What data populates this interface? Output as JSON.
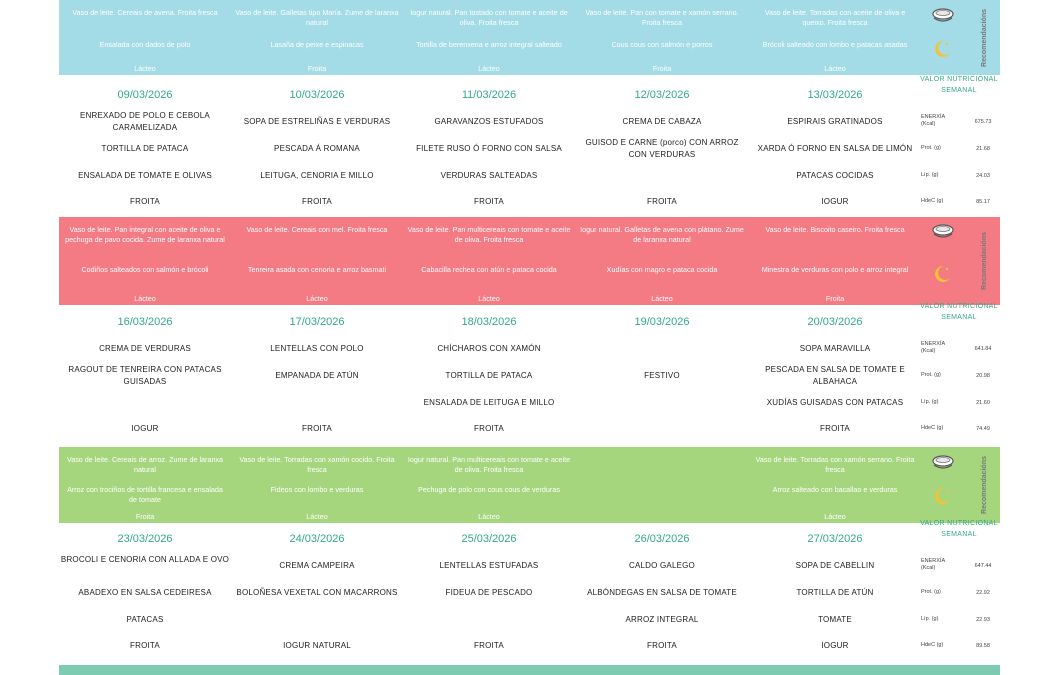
{
  "bands": [
    {
      "color": "#a3dbe6",
      "side_label": "Recomendacións",
      "cells": [
        {
          "breakfast": "Vaso de leite. Cereais de avena. Froita fresca",
          "dinner": "Ensalada con dados de polo",
          "dessert": "Lácteo"
        },
        {
          "breakfast": "Vaso de leite. Galletas tipo María. Zume de laranxa natural",
          "dinner": "Lasaña de peixe e espinacas",
          "dessert": "Froita"
        },
        {
          "breakfast": "Iogur natural. Pan tostado con tomate e aceite de oliva. Froita fresca",
          "dinner": "Tortilla de berenxena e arroz integral salteado",
          "dessert": "Lácteo"
        },
        {
          "breakfast": "Vaso de leite. Pan con tomate e xamón serrano. Froita fresca",
          "dinner": "Cous cous con salmón e porros",
          "dessert": "Froita"
        },
        {
          "breakfast": "Vaso de leite. Torradas con aceite de oliva e queixo. Froita fresca",
          "dinner": "Brócoli salteado con lombo e patacas asadas",
          "dessert": "Lácteo"
        }
      ]
    },
    {
      "color": "#f47a84",
      "side_label": "Recomendacións",
      "cells": [
        {
          "breakfast": "Vaso de leite. Pan integral con aceite de oliva e pechuga de pavo cocida. Zume de laranxa natural",
          "dinner": "Codiños salteados con salmón e brócoli",
          "dessert": "Lácteo"
        },
        {
          "breakfast": "Vaso de leite. Cereais con mel. Froita fresca",
          "dinner": "Tenreira asada con cenoria e arroz basmati",
          "dessert": "Lácteo"
        },
        {
          "breakfast": "Vaso de leite. Pan multicereais con tomate e aceite de oliva. Froita fresca",
          "dinner": "Cabacilla rechea con atún e pataca cocida",
          "dessert": "Lácteo"
        },
        {
          "breakfast": "Iogur natural. Galletas de avena con plátano. Zume de laranxa natural",
          "dinner": "Xudías con magro e pataca cocida",
          "dessert": "Lácteo"
        },
        {
          "breakfast": "Vaso de leite. Biscoito caseiro. Froita fresca",
          "dinner": "Minestra de verduras con polo e arroz integral",
          "dessert": "Froita"
        }
      ]
    },
    {
      "color": "#a5d67e",
      "side_label": "Recomendacións",
      "cells": [
        {
          "breakfast": "Vaso de leite. Cereais de arroz. Zume de laranxa natural",
          "dinner": "Arroz con trociños de tortilla francesa e ensalada de tomate",
          "dessert": "Froita"
        },
        {
          "breakfast": "Vaso de leite. Torradas con xamón cocido. Froita fresca",
          "dinner": "Fideos con lombo e verduras",
          "dessert": "Lácteo"
        },
        {
          "breakfast": "Iogur natural. Pan multicereais con tomate e aceite de oliva. Froita fresca",
          "dinner": "Pechuga de polo con cous cous de verduras",
          "dessert": "Lácteo"
        },
        {
          "breakfast": "",
          "dinner": "",
          "dessert": ""
        },
        {
          "breakfast": "Vaso de leite. Torradas con xamón serrano. Froita fresca",
          "dinner": "Arroz salteado con bacallao e verduras",
          "dessert": "Lácteo"
        }
      ]
    }
  ],
  "weeks": [
    {
      "dates": [
        "09/03/2026",
        "10/03/2026",
        "11/03/2026",
        "12/03/2026",
        "13/03/2026"
      ],
      "rows": [
        [
          "ENREXADO DE POLO E CEBOLA CARAMELIZADA",
          "SOPA DE ESTRELIÑAS E VERDURAS",
          "GARAVANZOS ESTUFADOS",
          "CREMA DE CABAZA",
          "ESPIRAIS GRATINADOS"
        ],
        [
          "TORTILLA DE PATACA",
          "PESCADA Á ROMANA",
          "FILETE RUSO Ó FORNO CON SALSA",
          "GUISOD E CARNE (porco) CON ARROZ CON VERDURAS",
          "XARDA Ó FORNO EN SALSA DE LIMÓN"
        ],
        [
          "ENSALADA DE TOMATE E OLIVAS",
          "LEITUGA, CENORIA E MILLO",
          "VERDURAS SALTEADAS",
          "",
          "PATACAS COCIDAS"
        ],
        [
          "FROITA",
          "FROITA",
          "FROITA",
          "FROITA",
          "IOGUR"
        ]
      ],
      "nutrition_title": "VALOR NUTRICIONAL SEMANAL",
      "nutrition": [
        {
          "label": "ENERXÍA (Kcal)",
          "value": "675.73"
        },
        {
          "label": "Prot. (g)",
          "value": "21.68"
        },
        {
          "label": "Líp. (g)",
          "value": "24.03"
        },
        {
          "label": "HdeC (g)",
          "value": "85.17"
        }
      ]
    },
    {
      "dates": [
        "16/03/2026",
        "17/03/2026",
        "18/03/2026",
        "19/03/2026",
        "20/03/2026"
      ],
      "rows": [
        [
          "CREMA DE VERDURAS",
          "LENTELLAS CON POLO",
          "CHÍCHAROS CON XAMÓN",
          "",
          "SOPA MARAVILLA"
        ],
        [
          "RAGOUT DE TENREIRA CON PATACAS GUISADAS",
          "EMPANADA DE ATÚN",
          "TORTILLA DE PATACA",
          "FESTIVO",
          "PESCADA EN SALSA DE TOMATE E ALBAHACA"
        ],
        [
          "",
          "",
          "ENSALADA DE LEITUGA E MILLO",
          "",
          "XUDÍAS GUISADAS CON PATACAS"
        ],
        [
          "IOGUR",
          "FROITA",
          "FROITA",
          "",
          "FROITA"
        ]
      ],
      "nutrition_title": "VALOR NUTRICIONAL SEMANAL",
      "nutrition": [
        {
          "label": "ENERXÍA (Kcal)",
          "value": "641.84"
        },
        {
          "label": "Prot. (g)",
          "value": "20.98"
        },
        {
          "label": "Líp. (g)",
          "value": "21.60"
        },
        {
          "label": "HdeC (g)",
          "value": "74.49"
        }
      ]
    },
    {
      "dates": [
        "23/03/2026",
        "24/03/2026",
        "25/03/2026",
        "26/03/2026",
        "27/03/2026"
      ],
      "rows": [
        [
          "BROCOLI E CENORIA CON ALLADA E OVO",
          "CREMA CAMPEIRA",
          "LENTELLAS ESTUFADAS",
          "CALDO GALEGO",
          "SOPA DE CABELLIN"
        ],
        [
          "ABADEXO EN SALSA CEDEIRESA",
          "BOLOÑESA VEXETAL CON MACARRONS",
          "FIDEUA DE PESCADO",
          "ALBÓNDEGAS EN SALSA DE TOMATE",
          "TORTILLA DE ATÚN"
        ],
        [
          "PATACAS",
          "",
          "",
          "ARROZ INTEGRAL",
          "TOMATE"
        ],
        [
          "FROITA",
          "IOGUR NATURAL",
          "FROITA",
          "FROITA",
          "IOGUR"
        ]
      ],
      "nutrition_title": "VALOR NUTRICIONAL SEMANAL",
      "nutrition": [
        {
          "label": "ENERXÍA (Kcal)",
          "value": "647.44"
        },
        {
          "label": "Prot. (g)",
          "value": "22.92"
        },
        {
          "label": "Líp. (g)",
          "value": "22.93"
        },
        {
          "label": "HdeC (g)",
          "value": "89.58"
        }
      ]
    }
  ],
  "icons": {
    "breakfast": "cup-icon",
    "dinner": "moon-icon"
  },
  "colors": {
    "accent": "#33a88a",
    "footer": "#7dcbb0"
  }
}
